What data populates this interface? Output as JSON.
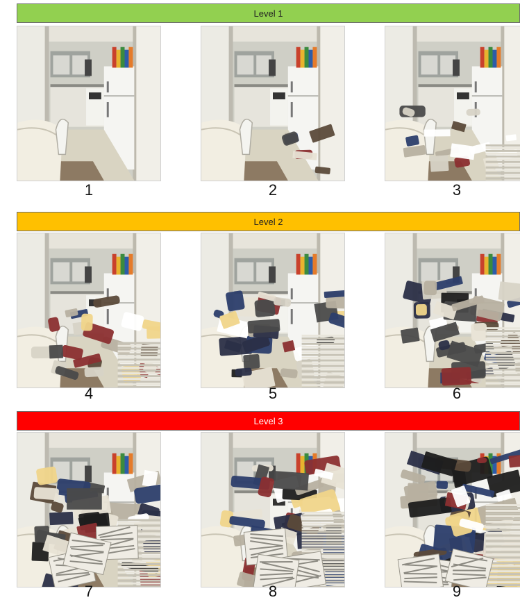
{
  "levels": [
    {
      "label": "Level 1",
      "color": "#92d050",
      "images": [
        {
          "number": "1",
          "clutter": 0.0
        },
        {
          "number": "2",
          "clutter": 0.12
        },
        {
          "number": "3",
          "clutter": 0.25
        }
      ]
    },
    {
      "label": "Level 2",
      "color": "#ffc000",
      "images": [
        {
          "number": "4",
          "clutter": 0.4
        },
        {
          "number": "5",
          "clutter": 0.52
        },
        {
          "number": "6",
          "clutter": 0.64
        }
      ]
    },
    {
      "label": "Level 3",
      "color": "#ff0000",
      "images": [
        {
          "number": "7",
          "clutter": 0.76
        },
        {
          "number": "8",
          "clutter": 0.88
        },
        {
          "number": "9",
          "clutter": 1.0
        }
      ]
    }
  ]
}
